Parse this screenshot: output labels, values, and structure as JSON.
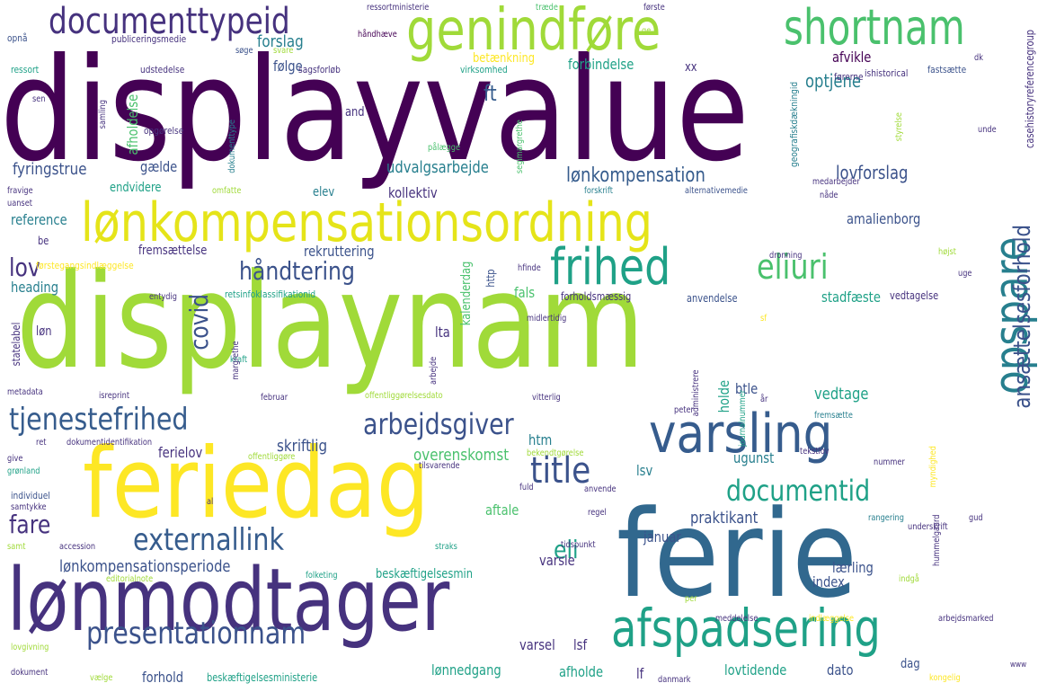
{
  "words": [
    {
      "text": "displayvalue",
      "weight": 1.0,
      "color": "#440154"
    },
    {
      "text": "displaynam",
      "weight": 0.98,
      "color": "#a0da39"
    },
    {
      "text": "ferie",
      "weight": 0.93,
      "color": "#31688e"
    },
    {
      "text": "feriedag",
      "weight": 0.75,
      "color": "#fde725"
    },
    {
      "text": "lønmodtager",
      "weight": 0.7,
      "color": "#46327e"
    },
    {
      "text": "lønkompensationsordning",
      "weight": 0.55,
      "color": "#e5e419"
    },
    {
      "text": "genindføre",
      "weight": 0.52,
      "color": "#a0da39"
    },
    {
      "text": "shortnam",
      "weight": 0.48,
      "color": "#4ac16d"
    },
    {
      "text": "varsling",
      "weight": 0.46,
      "color": "#365c8d"
    },
    {
      "text": "afspadsering",
      "weight": 0.45,
      "color": "#1fa187"
    },
    {
      "text": "frihed",
      "weight": 0.42,
      "color": "#1fa187"
    },
    {
      "text": "opspare",
      "weight": 0.4,
      "color": "#277f8e"
    },
    {
      "text": "documenttypeid",
      "weight": 0.38,
      "color": "#46327e"
    },
    {
      "text": "presentationnam",
      "weight": 0.33,
      "color": "#3b528b"
    },
    {
      "text": "externallink",
      "weight": 0.31,
      "color": "#365c8d"
    },
    {
      "text": "tjenestefrihed",
      "weight": 0.3,
      "color": "#365c8d"
    },
    {
      "text": "title",
      "weight": 0.3,
      "color": "#3b528b"
    },
    {
      "text": "eliuri",
      "weight": 0.29,
      "color": "#4ac16d"
    },
    {
      "text": "documentid",
      "weight": 0.27,
      "color": "#1fa187"
    },
    {
      "text": "arbejdsgiver",
      "weight": 0.26,
      "color": "#3b528b"
    },
    {
      "text": "ansættelsesforhold",
      "weight": 0.25,
      "color": "#3b528b"
    },
    {
      "text": "håndtering",
      "weight": 0.24,
      "color": "#3b528b"
    },
    {
      "text": "covid",
      "weight": 0.23,
      "color": "#3b528b"
    },
    {
      "text": "lov",
      "weight": 0.23,
      "color": "#46327e"
    },
    {
      "text": "fare",
      "weight": 0.22,
      "color": "#46327e"
    },
    {
      "text": "eli",
      "weight": 0.22,
      "color": "#1fa187"
    },
    {
      "text": "lønkompensation",
      "weight": 0.18,
      "color": "#365c8d"
    },
    {
      "text": "ft",
      "weight": 0.18,
      "color": "#365c8d"
    },
    {
      "text": "lønkompensationsperiode",
      "weight": 0.14,
      "color": "#3b528b"
    },
    {
      "text": "optjene",
      "weight": 0.16,
      "color": "#277f8e"
    },
    {
      "text": "udvalgsarbejde",
      "weight": 0.13,
      "color": "#277f8e"
    },
    {
      "text": "lovforslag",
      "weight": 0.14,
      "color": "#3b528b"
    },
    {
      "text": "amalienborg",
      "weight": 0.1,
      "color": "#3b528b"
    },
    {
      "text": "forslag",
      "weight": 0.12,
      "color": "#277f8e"
    },
    {
      "text": "forbindelse",
      "weight": 0.11,
      "color": "#1fa187"
    },
    {
      "text": "afvikle",
      "weight": 0.11,
      "color": "#440154"
    },
    {
      "text": "følge",
      "weight": 0.1,
      "color": "#3b528b"
    },
    {
      "text": "betænkning",
      "weight": 0.09,
      "color": "#fde725"
    },
    {
      "text": "afholdelse",
      "weight": 0.1,
      "color": "#4ac16d"
    },
    {
      "text": "fyringstrue",
      "weight": 0.11,
      "color": "#3b528b"
    },
    {
      "text": "gælde",
      "weight": 0.1,
      "color": "#3b528b"
    },
    {
      "text": "endvidere",
      "weight": 0.09,
      "color": "#1fa187"
    },
    {
      "text": "kollektiv",
      "weight": 0.1,
      "color": "#46327e"
    },
    {
      "text": "elev",
      "weight": 0.09,
      "color": "#277f8e"
    },
    {
      "text": "reference",
      "weight": 0.1,
      "color": "#277f8e"
    },
    {
      "text": "fremsættelse",
      "weight": 0.1,
      "color": "#46327e"
    },
    {
      "text": "rekruttering",
      "weight": 0.1,
      "color": "#3b528b"
    },
    {
      "text": "kalenderdag",
      "weight": 0.09,
      "color": "#4ac16d"
    },
    {
      "text": "skriftlig",
      "weight": 0.11,
      "color": "#3b528b"
    },
    {
      "text": "overenskomst",
      "weight": 0.11,
      "color": "#4ac16d"
    },
    {
      "text": "ferielov",
      "weight": 0.1,
      "color": "#46327e"
    },
    {
      "text": "aftale",
      "weight": 0.1,
      "color": "#4ac16d"
    },
    {
      "text": "praktikant",
      "weight": 0.1,
      "color": "#3b528b"
    },
    {
      "text": "januar",
      "weight": 0.09,
      "color": "#3b528b"
    },
    {
      "text": "varsle",
      "weight": 0.09,
      "color": "#46327e"
    },
    {
      "text": "vedtage",
      "weight": 0.1,
      "color": "#1fa187"
    },
    {
      "text": "stadfæste",
      "weight": 0.09,
      "color": "#1fa187"
    },
    {
      "text": "holde",
      "weight": 0.09,
      "color": "#1fa187"
    },
    {
      "text": "btle",
      "weight": 0.09,
      "color": "#3b528b"
    },
    {
      "text": "ugunst",
      "weight": 0.09,
      "color": "#277f8e"
    },
    {
      "text": "lsv",
      "weight": 0.09,
      "color": "#277f8e"
    },
    {
      "text": "htm",
      "weight": 0.09,
      "color": "#277f8e"
    },
    {
      "text": "lta",
      "weight": 0.09,
      "color": "#46327e"
    },
    {
      "text": "fals",
      "weight": 0.09,
      "color": "#4ac16d"
    },
    {
      "text": "heading",
      "weight": 0.08,
      "color": "#277f8e"
    },
    {
      "text": "løn",
      "weight": 0.08,
      "color": "#46327e"
    },
    {
      "text": "lærling",
      "weight": 0.09,
      "color": "#3b528b"
    },
    {
      "text": "index",
      "weight": 0.09,
      "color": "#3b528b"
    },
    {
      "text": "beskæftigelsesmin",
      "weight": 0.08,
      "color": "#1fa187"
    },
    {
      "text": "varsel",
      "weight": 0.09,
      "color": "#46327e"
    },
    {
      "text": "lsf",
      "weight": 0.09,
      "color": "#46327e"
    },
    {
      "text": "lønnedgang",
      "weight": 0.09,
      "color": "#1fa187"
    },
    {
      "text": "afholde",
      "weight": 0.09,
      "color": "#1fa187"
    },
    {
      "text": "lf",
      "weight": 0.09,
      "color": "#46327e"
    },
    {
      "text": "lovtidende",
      "weight": 0.09,
      "color": "#1fa187"
    },
    {
      "text": "dato",
      "weight": 0.09,
      "color": "#3b528b"
    },
    {
      "text": "dag",
      "weight": 0.08,
      "color": "#3b528b"
    },
    {
      "text": "forhold",
      "weight": 0.09,
      "color": "#3b528b"
    },
    {
      "text": "beskæftigelsesministerie",
      "weight": 0.07,
      "color": "#1fa187"
    },
    {
      "text": "forholdsmæssig",
      "weight": 0.08,
      "color": "#46327e"
    },
    {
      "text": "anvendelse",
      "weight": 0.07,
      "color": "#3b528b"
    },
    {
      "text": "vedtagelse",
      "weight": 0.07,
      "color": "#46327e"
    },
    {
      "text": "statelabel",
      "weight": 0.07,
      "color": "#46327e"
    },
    {
      "text": "and",
      "weight": 0.08,
      "color": "#46327e"
    },
    {
      "text": "xx",
      "weight": 0.07,
      "color": "#46327e"
    },
    {
      "text": "be",
      "weight": 0.07,
      "color": "#46327e"
    },
    {
      "text": "http",
      "weight": 0.07,
      "color": "#3b528b"
    },
    {
      "text": "ressortministerie",
      "weight": 0.06,
      "color": "#46327e"
    },
    {
      "text": "træde",
      "weight": 0.06,
      "color": "#4ac16d"
    },
    {
      "text": "første",
      "weight": 0.06,
      "color": "#46327e"
    },
    {
      "text": "håndhæve",
      "weight": 0.06,
      "color": "#440154"
    },
    {
      "text": "casehistoryreferencegroup",
      "weight": 0.06,
      "color": "#46327e"
    },
    {
      "text": "opnå",
      "weight": 0.06,
      "color": "#3b528b"
    },
    {
      "text": "publiceringsmedie",
      "weight": 0.06,
      "color": "#46327e"
    },
    {
      "text": "søge",
      "weight": 0.05,
      "color": "#3b528b"
    },
    {
      "text": "svare",
      "weight": 0.05,
      "color": "#a0da39"
    },
    {
      "text": "ge",
      "weight": 0.05,
      "color": "#a0da39"
    },
    {
      "text": "ressort",
      "weight": 0.06,
      "color": "#1fa187"
    },
    {
      "text": "udstedelse",
      "weight": 0.06,
      "color": "#46327e"
    },
    {
      "text": "sagsforløb",
      "weight": 0.06,
      "color": "#46327e"
    },
    {
      "text": "virksomhed",
      "weight": 0.06,
      "color": "#1fa187"
    },
    {
      "text": "geografiskdækningid",
      "weight": 0.06,
      "color": "#277f8e"
    },
    {
      "text": "førerne",
      "weight": 0.06,
      "color": "#46327e"
    },
    {
      "text": "ishistorical",
      "weight": 0.06,
      "color": "#46327e"
    },
    {
      "text": "fastsætte",
      "weight": 0.06,
      "color": "#3b528b"
    },
    {
      "text": "dk",
      "weight": 0.05,
      "color": "#46327e"
    },
    {
      "text": "sen",
      "weight": 0.05,
      "color": "#46327e"
    },
    {
      "text": "samling",
      "weight": 0.05,
      "color": "#46327e"
    },
    {
      "text": "opgørelse",
      "weight": 0.06,
      "color": "#46327e"
    },
    {
      "text": "dokumenttype",
      "weight": 0.05,
      "color": "#277f8e"
    },
    {
      "text": "pålægge",
      "weight": 0.05,
      "color": "#4ac16d"
    },
    {
      "text": "segimargrethe",
      "weight": 0.05,
      "color": "#4ac16d"
    },
    {
      "text": "styrelse",
      "weight": 0.05,
      "color": "#a0da39"
    },
    {
      "text": "unde",
      "weight": 0.05,
      "color": "#46327e"
    },
    {
      "text": "fravige",
      "weight": 0.05,
      "color": "#46327e"
    },
    {
      "text": "uanset",
      "weight": 0.05,
      "color": "#46327e"
    },
    {
      "text": "omfatte",
      "weight": 0.05,
      "color": "#a0da39"
    },
    {
      "text": "forskrift",
      "weight": 0.05,
      "color": "#277f8e"
    },
    {
      "text": "alternativemedie",
      "weight": 0.05,
      "color": "#3b528b"
    },
    {
      "text": "medarbejder",
      "weight": 0.05,
      "color": "#46327e"
    },
    {
      "text": "nåde",
      "weight": 0.05,
      "color": "#46327e"
    },
    {
      "text": "førstegangsindlæggelse",
      "weight": 0.06,
      "color": "#fde725"
    },
    {
      "text": "hfinde",
      "weight": 0.05,
      "color": "#46327e"
    },
    {
      "text": "dronning",
      "weight": 0.05,
      "color": "#46327e"
    },
    {
      "text": "højst",
      "weight": 0.05,
      "color": "#a0da39"
    },
    {
      "text": "uge",
      "weight": 0.05,
      "color": "#46327e"
    },
    {
      "text": "entydig",
      "weight": 0.05,
      "color": "#46327e"
    },
    {
      "text": "retsinfoklassifikationid",
      "weight": 0.06,
      "color": "#1fa187"
    },
    {
      "text": "kraft",
      "weight": 0.05,
      "color": "#1fa187"
    },
    {
      "text": "arbejde",
      "weight": 0.05,
      "color": "#46327e"
    },
    {
      "text": "midlertidig",
      "weight": 0.05,
      "color": "#46327e"
    },
    {
      "text": "administrere",
      "weight": 0.05,
      "color": "#46327e"
    },
    {
      "text": "sf",
      "weight": 0.05,
      "color": "#fde725"
    },
    {
      "text": "margrethe",
      "weight": 0.05,
      "color": "#46327e"
    },
    {
      "text": "metadata",
      "weight": 0.05,
      "color": "#46327e"
    },
    {
      "text": "isreprint",
      "weight": 0.05,
      "color": "#46327e"
    },
    {
      "text": "februar",
      "weight": 0.05,
      "color": "#46327e"
    },
    {
      "text": "offentliggørelsesdato",
      "weight": 0.06,
      "color": "#a0da39"
    },
    {
      "text": "vitterlig",
      "weight": 0.05,
      "color": "#46327e"
    },
    {
      "text": "journalnummer",
      "weight": 0.05,
      "color": "#1fa187"
    },
    {
      "text": "peter",
      "weight": 0.05,
      "color": "#46327e"
    },
    {
      "text": "år",
      "weight": 0.05,
      "color": "#46327e"
    },
    {
      "text": "fremsætte",
      "weight": 0.05,
      "color": "#277f8e"
    },
    {
      "text": "ret",
      "weight": 0.05,
      "color": "#46327e"
    },
    {
      "text": "dokumentidentifikation",
      "weight": 0.06,
      "color": "#46327e"
    },
    {
      "text": "bekendtgørelse",
      "weight": 0.05,
      "color": "#a0da39"
    },
    {
      "text": "myndighed",
      "weight": 0.05,
      "color": "#fde725"
    },
    {
      "text": "give",
      "weight": 0.05,
      "color": "#46327e"
    },
    {
      "text": "grønland",
      "weight": 0.05,
      "color": "#1fa187"
    },
    {
      "text": "offentliggøre",
      "weight": 0.05,
      "color": "#a0da39"
    },
    {
      "text": "tilsvarende",
      "weight": 0.05,
      "color": "#46327e"
    },
    {
      "text": "tekstlov",
      "weight": 0.05,
      "color": "#46327e"
    },
    {
      "text": "nummer",
      "weight": 0.05,
      "color": "#46327e"
    },
    {
      "text": "individuel",
      "weight": 0.05,
      "color": "#3b528b"
    },
    {
      "text": "fuld",
      "weight": 0.05,
      "color": "#46327e"
    },
    {
      "text": "anvende",
      "weight": 0.05,
      "color": "#46327e"
    },
    {
      "text": "samtykke",
      "weight": 0.05,
      "color": "#46327e"
    },
    {
      "text": "al",
      "weight": 0.05,
      "color": "#46327e"
    },
    {
      "text": "regel",
      "weight": 0.05,
      "color": "#46327e"
    },
    {
      "text": "hummelgaard",
      "weight": 0.05,
      "color": "#46327e"
    },
    {
      "text": "gud",
      "weight": 0.05,
      "color": "#46327e"
    },
    {
      "text": "rangering",
      "weight": 0.05,
      "color": "#277f8e"
    },
    {
      "text": "underskrift",
      "weight": 0.05,
      "color": "#46327e"
    },
    {
      "text": "samt",
      "weight": 0.05,
      "color": "#a0da39"
    },
    {
      "text": "accession",
      "weight": 0.05,
      "color": "#46327e"
    },
    {
      "text": "straks",
      "weight": 0.05,
      "color": "#1fa187"
    },
    {
      "text": "tidspunkt",
      "weight": 0.05,
      "color": "#46327e"
    },
    {
      "text": "editorialnote",
      "weight": 0.05,
      "color": "#a0da39"
    },
    {
      "text": "folketing",
      "weight": 0.05,
      "color": "#1fa187"
    },
    {
      "text": "indgå",
      "weight": 0.05,
      "color": "#a0da39"
    },
    {
      "text": "per",
      "weight": 0.05,
      "color": "#a0da39"
    },
    {
      "text": "meddelelse",
      "weight": 0.05,
      "color": "#46327e"
    },
    {
      "text": "indlæggelse",
      "weight": 0.05,
      "color": "#fde725"
    },
    {
      "text": "arbejdsmarked",
      "weight": 0.05,
      "color": "#46327e"
    },
    {
      "text": "lovgivning",
      "weight": 0.05,
      "color": "#a0da39"
    },
    {
      "text": "dokument",
      "weight": 0.05,
      "color": "#46327e"
    },
    {
      "text": "vælge",
      "weight": 0.05,
      "color": "#a0da39"
    },
    {
      "text": "danmark",
      "weight": 0.05,
      "color": "#46327e"
    },
    {
      "text": "kongelig",
      "weight": 0.05,
      "color": "#fde725"
    },
    {
      "text": "www",
      "weight": 0.04,
      "color": "#46327e"
    }
  ]
}
